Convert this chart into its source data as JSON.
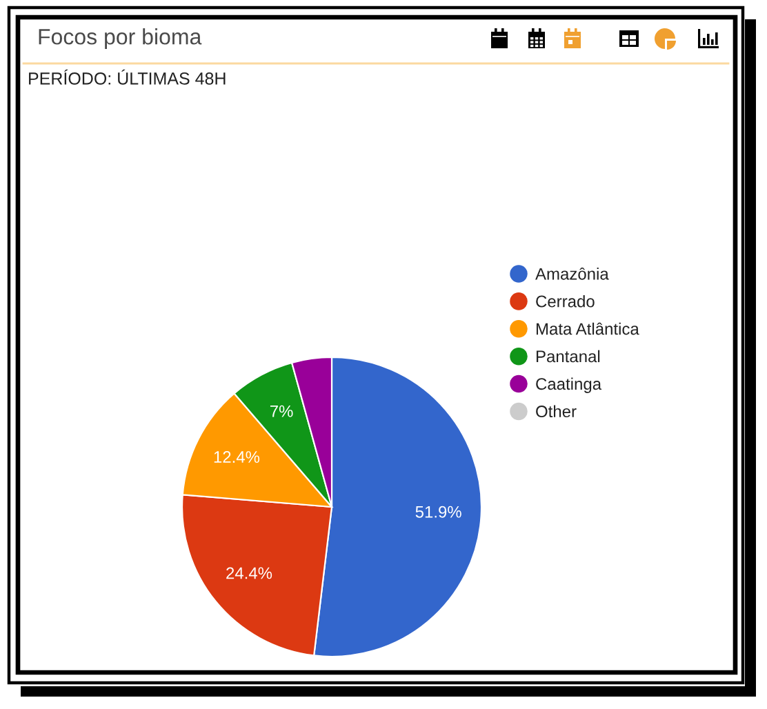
{
  "chart_data": {
    "type": "pie",
    "title": "Focos por bioma",
    "subtitle": "PERÍODO: ÚLTIMAS 48H",
    "categories": [
      "Amazônia",
      "Cerrado",
      "Mata Atlântica",
      "Pantanal",
      "Caatinga",
      "Other"
    ],
    "values": [
      51.9,
      24.4,
      12.4,
      7,
      4.3,
      0
    ],
    "colors": [
      "#3366cc",
      "#dc3912",
      "#ff9900",
      "#109618",
      "#990099",
      "#cccccc"
    ],
    "value_labels": [
      "51.9%",
      "24.4%",
      "12.4%",
      "7%",
      null,
      null
    ],
    "legend": "right"
  }
}
